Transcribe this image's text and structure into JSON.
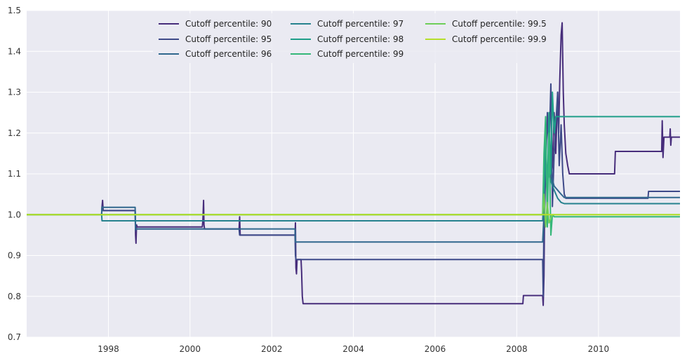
{
  "chart_data": {
    "type": "line",
    "xlim": [
      "1996-01-01",
      "2011-12-31"
    ],
    "ylim": [
      0.7,
      1.5
    ],
    "grid": true,
    "legend_position": "top-center",
    "legend_columns": 3,
    "background": "#eaeaf2",
    "grid_color": "#ffffff",
    "x_ticks": [
      "1998",
      "2000",
      "2002",
      "2004",
      "2006",
      "2008",
      "2010"
    ],
    "y_ticks": [
      "0.7",
      "0.8",
      "0.9",
      "1.0",
      "1.1",
      "1.2",
      "1.3",
      "1.4",
      "1.5"
    ],
    "series": [
      {
        "name": "Cutoff percentile: 90",
        "color": "#472d7b",
        "points": [
          [
            "1996-01-01",
            1.0
          ],
          [
            "1997-11-01",
            1.0
          ],
          [
            "1997-11-05",
            1.02
          ],
          [
            "1997-11-10",
            1.035
          ],
          [
            "1997-11-15",
            1.01
          ],
          [
            "1998-08-28",
            1.01
          ],
          [
            "1998-09-01",
            0.95
          ],
          [
            "1998-09-05",
            0.93
          ],
          [
            "1998-09-10",
            0.975
          ],
          [
            "1998-09-15",
            0.97
          ],
          [
            "2000-04-20",
            0.97
          ],
          [
            "2000-04-25",
            0.985
          ],
          [
            "2000-05-01",
            1.035
          ],
          [
            "2000-05-05",
            0.975
          ],
          [
            "2000-05-10",
            0.965
          ],
          [
            "2001-03-15",
            0.965
          ],
          [
            "2001-03-20",
            0.995
          ],
          [
            "2001-03-25",
            0.95
          ],
          [
            "2002-07-28",
            0.95
          ],
          [
            "2002-08-01",
            0.98
          ],
          [
            "2002-08-05",
            0.87
          ],
          [
            "2002-08-10",
            0.855
          ],
          [
            "2002-08-15",
            0.89
          ],
          [
            "2002-09-20",
            0.89
          ],
          [
            "2002-09-25",
            0.86
          ],
          [
            "2002-10-01",
            0.8
          ],
          [
            "2002-10-08",
            0.782
          ],
          [
            "2008-02-25",
            0.782
          ],
          [
            "2008-03-01",
            0.802
          ],
          [
            "2008-08-20",
            0.802
          ],
          [
            "2008-08-25",
            0.778
          ],
          [
            "2008-09-01",
            0.85
          ],
          [
            "2008-09-05",
            0.98
          ],
          [
            "2008-09-15",
            1.12
          ],
          [
            "2008-10-01",
            1.05
          ],
          [
            "2008-10-15",
            1.2
          ],
          [
            "2008-11-01",
            1.08
          ],
          [
            "2008-11-15",
            1.12
          ],
          [
            "2008-12-01",
            1.25
          ],
          [
            "2008-12-15",
            1.15
          ],
          [
            "2009-01-01",
            1.3
          ],
          [
            "2009-01-10",
            1.2
          ],
          [
            "2009-01-20",
            1.33
          ],
          [
            "2009-02-01",
            1.44
          ],
          [
            "2009-02-10",
            1.47
          ],
          [
            "2009-02-20",
            1.3
          ],
          [
            "2009-03-01",
            1.22
          ],
          [
            "2009-03-15",
            1.15
          ],
          [
            "2009-04-01",
            1.12
          ],
          [
            "2009-04-15",
            1.1
          ],
          [
            "2010-05-25",
            1.1
          ],
          [
            "2010-06-01",
            1.155
          ],
          [
            "2011-07-20",
            1.155
          ],
          [
            "2011-07-25",
            1.23
          ],
          [
            "2011-08-01",
            1.14
          ],
          [
            "2011-08-10",
            1.19
          ],
          [
            "2011-10-01",
            1.19
          ],
          [
            "2011-10-05",
            1.21
          ],
          [
            "2011-10-10",
            1.17
          ],
          [
            "2011-10-15",
            1.19
          ],
          [
            "2011-12-31",
            1.19
          ]
        ]
      },
      {
        "name": "Cutoff percentile: 95",
        "color": "#3e4a89",
        "points": [
          [
            "1996-01-01",
            1.0
          ],
          [
            "1997-11-01",
            1.0
          ],
          [
            "1997-11-05",
            1.02
          ],
          [
            "1997-11-10",
            1.01
          ],
          [
            "1998-08-28",
            1.01
          ],
          [
            "1998-09-01",
            0.96
          ],
          [
            "1998-09-05",
            0.965
          ],
          [
            "2001-03-15",
            0.965
          ],
          [
            "2001-03-20",
            0.95
          ],
          [
            "2002-07-28",
            0.95
          ],
          [
            "2002-08-01",
            0.9
          ],
          [
            "2002-08-05",
            0.89
          ],
          [
            "2008-08-20",
            0.89
          ],
          [
            "2008-08-25",
            0.8
          ],
          [
            "2008-09-01",
            1.0
          ],
          [
            "2008-09-15",
            1.1
          ],
          [
            "2008-10-01",
            1.25
          ],
          [
            "2008-10-15",
            1.15
          ],
          [
            "2008-11-01",
            1.32
          ],
          [
            "2008-11-15",
            1.02
          ],
          [
            "2008-12-01",
            1.15
          ],
          [
            "2009-01-01",
            1.3
          ],
          [
            "2009-01-15",
            1.12
          ],
          [
            "2009-02-01",
            1.22
          ],
          [
            "2009-02-15",
            1.1
          ],
          [
            "2009-03-01",
            1.05
          ],
          [
            "2009-03-15",
            1.04
          ],
          [
            "2011-03-20",
            1.04
          ],
          [
            "2011-03-25",
            1.057
          ],
          [
            "2011-12-31",
            1.057
          ]
        ]
      },
      {
        "name": "Cutoff percentile: 96",
        "color": "#31688e",
        "points": [
          [
            "1996-01-01",
            1.0
          ],
          [
            "1997-11-01",
            1.0
          ],
          [
            "1997-11-05",
            1.018
          ],
          [
            "1998-08-28",
            1.018
          ],
          [
            "1998-09-01",
            0.965
          ],
          [
            "2002-07-28",
            0.965
          ],
          [
            "2002-08-01",
            0.933
          ],
          [
            "2008-08-20",
            0.933
          ],
          [
            "2008-09-01",
            1.0
          ],
          [
            "2008-09-15",
            1.15
          ],
          [
            "2008-10-01",
            1.05
          ],
          [
            "2008-10-15",
            1.2
          ],
          [
            "2008-11-01",
            1.1
          ],
          [
            "2008-12-01",
            1.07
          ],
          [
            "2009-01-01",
            1.06
          ],
          [
            "2009-02-01",
            1.05
          ],
          [
            "2009-03-01",
            1.042
          ],
          [
            "2011-12-31",
            1.042
          ]
        ]
      },
      {
        "name": "Cutoff percentile: 97",
        "color": "#26828e",
        "points": [
          [
            "1996-01-01",
            1.0
          ],
          [
            "1997-11-01",
            1.0
          ],
          [
            "1997-11-05",
            0.985
          ],
          [
            "2000-01-28",
            0.985
          ],
          [
            "2000-02-01",
            0.985
          ],
          [
            "2008-08-20",
            0.985
          ],
          [
            "2008-09-01",
            1.05
          ],
          [
            "2008-09-15",
            1.12
          ],
          [
            "2008-10-01",
            1.08
          ],
          [
            "2008-10-15",
            1.1
          ],
          [
            "2008-11-15",
            1.07
          ],
          [
            "2009-01-01",
            1.04
          ],
          [
            "2009-02-01",
            1.03
          ],
          [
            "2009-03-01",
            1.027
          ],
          [
            "2011-07-25",
            1.027
          ],
          [
            "2011-07-30",
            1.027
          ],
          [
            "2011-12-31",
            1.027
          ]
        ]
      },
      {
        "name": "Cutoff percentile: 98",
        "color": "#1f9e89",
        "points": [
          [
            "1996-01-01",
            1.0
          ],
          [
            "2008-08-20",
            1.0
          ],
          [
            "2008-09-01",
            1.08
          ],
          [
            "2008-09-15",
            1.2
          ],
          [
            "2008-10-01",
            1.05
          ],
          [
            "2008-10-15",
            1.25
          ],
          [
            "2008-11-01",
            1.1
          ],
          [
            "2008-11-15",
            1.3
          ],
          [
            "2008-12-01",
            1.2
          ],
          [
            "2008-12-15",
            1.24
          ],
          [
            "2011-12-31",
            1.24
          ]
        ]
      },
      {
        "name": "Cutoff percentile: 99",
        "color": "#35b779",
        "points": [
          [
            "1996-01-01",
            1.0
          ],
          [
            "2008-08-20",
            1.0
          ],
          [
            "2008-09-01",
            1.15
          ],
          [
            "2008-09-15",
            1.24
          ],
          [
            "2008-10-01",
            0.97
          ],
          [
            "2008-10-15",
            1.2
          ],
          [
            "2008-11-01",
            0.95
          ],
          [
            "2008-11-15",
            1.0
          ],
          [
            "2008-12-01",
            0.995
          ],
          [
            "2011-12-31",
            0.995
          ]
        ]
      },
      {
        "name": "Cutoff percentile: 99.5",
        "color": "#6ece58",
        "points": [
          [
            "1996-01-01",
            1.0
          ],
          [
            "2008-08-20",
            1.0
          ],
          [
            "2008-09-01",
            1.05
          ],
          [
            "2008-09-15",
            0.97
          ],
          [
            "2008-10-01",
            1.03
          ],
          [
            "2008-10-15",
            0.98
          ],
          [
            "2008-11-15",
            1.0
          ],
          [
            "2011-12-31",
            1.0
          ]
        ]
      },
      {
        "name": "Cutoff percentile: 99.9",
        "color": "#b5de2b",
        "points": [
          [
            "1996-01-01",
            1.0
          ],
          [
            "2011-12-31",
            1.0
          ]
        ]
      }
    ]
  }
}
